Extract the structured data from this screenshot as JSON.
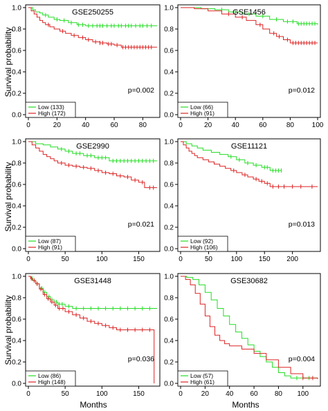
{
  "figure": {
    "y_axis_title": "Survival probability",
    "x_axis_title": "Months"
  },
  "chart_data": [
    {
      "type": "line",
      "subtype": "kaplan-meier",
      "title": "GSE250255",
      "xlim": [
        0,
        90
      ],
      "ylim": [
        0,
        1
      ],
      "x_ticks": [
        0,
        20,
        40,
        60,
        80
      ],
      "y_ticks": [
        0.0,
        0.2,
        0.4,
        0.6,
        0.8,
        1.0
      ],
      "p_value": "p=0.002",
      "legend_placement": "bottom-left",
      "series": [
        {
          "name": "Low (133)",
          "color": "#22dd22",
          "x": [
            0,
            3,
            5,
            8,
            10,
            14,
            18,
            22,
            28,
            34,
            40,
            90
          ],
          "y": [
            1.0,
            0.98,
            0.96,
            0.95,
            0.93,
            0.91,
            0.89,
            0.88,
            0.86,
            0.84,
            0.83,
            0.83
          ],
          "censor_x": [
            12,
            20,
            25,
            30,
            35,
            38,
            42,
            45,
            48,
            50,
            52,
            55,
            58,
            60,
            63,
            65,
            68,
            70,
            72,
            75,
            78,
            80,
            83,
            86
          ]
        },
        {
          "name": "High (172)",
          "color": "#dd2222",
          "x": [
            0,
            2,
            4,
            6,
            8,
            10,
            12,
            15,
            18,
            22,
            26,
            30,
            35,
            40,
            45,
            50,
            55,
            60,
            65,
            90
          ],
          "y": [
            1.0,
            0.97,
            0.94,
            0.91,
            0.88,
            0.86,
            0.84,
            0.82,
            0.8,
            0.78,
            0.76,
            0.74,
            0.72,
            0.7,
            0.68,
            0.67,
            0.66,
            0.65,
            0.63,
            0.63
          ],
          "censor_x": [
            14,
            24,
            32,
            38,
            42,
            47,
            50,
            52,
            56,
            58,
            62,
            66,
            68,
            70,
            72,
            74,
            76,
            78,
            80,
            82,
            84,
            86
          ]
        }
      ]
    },
    {
      "type": "line",
      "subtype": "kaplan-meier",
      "title": "GSE1456",
      "xlim": [
        0,
        100
      ],
      "ylim": [
        0,
        1
      ],
      "x_ticks": [
        0,
        20,
        40,
        60,
        80,
        100
      ],
      "y_ticks": [
        0.0,
        0.2,
        0.4,
        0.6,
        0.8,
        1.0
      ],
      "p_value": "p=0.012",
      "legend_placement": "bottom-left",
      "series": [
        {
          "name": "Low (66)",
          "color": "#22dd22",
          "x": [
            0,
            15,
            25,
            35,
            45,
            55,
            65,
            75,
            85,
            100
          ],
          "y": [
            1.0,
            0.99,
            0.98,
            0.96,
            0.94,
            0.92,
            0.89,
            0.87,
            0.85,
            0.84
          ],
          "censor_x": [
            30,
            40,
            50,
            60,
            70,
            78,
            82,
            86,
            88,
            90,
            92,
            94,
            96,
            98
          ]
        },
        {
          "name": "High (91)",
          "color": "#dd2222",
          "x": [
            0,
            10,
            20,
            30,
            40,
            48,
            55,
            60,
            65,
            70,
            75,
            80,
            100
          ],
          "y": [
            1.0,
            0.99,
            0.97,
            0.94,
            0.91,
            0.88,
            0.84,
            0.8,
            0.76,
            0.73,
            0.7,
            0.67,
            0.67
          ],
          "censor_x": [
            35,
            45,
            58,
            68,
            72,
            78,
            82,
            84,
            86,
            88,
            90,
            92,
            94,
            96,
            98
          ]
        }
      ]
    },
    {
      "type": "line",
      "subtype": "kaplan-meier",
      "title": "GSE2990",
      "xlim": [
        0,
        175
      ],
      "ylim": [
        0,
        1
      ],
      "x_ticks": [
        0,
        50,
        100,
        150
      ],
      "y_ticks": [
        0.0,
        0.2,
        0.4,
        0.6,
        0.8,
        1.0
      ],
      "p_value": "p=0.021",
      "legend_placement": "bottom-left",
      "series": [
        {
          "name": "Low (87)",
          "color": "#22dd22",
          "x": [
            0,
            10,
            20,
            30,
            40,
            50,
            60,
            75,
            90,
            110,
            175
          ],
          "y": [
            1.0,
            0.98,
            0.97,
            0.95,
            0.93,
            0.91,
            0.89,
            0.87,
            0.85,
            0.82,
            0.82
          ],
          "censor_x": [
            45,
            55,
            65,
            70,
            80,
            85,
            95,
            100,
            105,
            115,
            120,
            125,
            130,
            135,
            140,
            145,
            150,
            155,
            160,
            165,
            170
          ]
        },
        {
          "name": "High (91)",
          "color": "#dd2222",
          "x": [
            0,
            5,
            10,
            15,
            20,
            25,
            30,
            35,
            40,
            50,
            60,
            70,
            80,
            90,
            100,
            110,
            120,
            130,
            140,
            150,
            158,
            175
          ],
          "y": [
            1.0,
            0.97,
            0.94,
            0.91,
            0.88,
            0.86,
            0.84,
            0.82,
            0.8,
            0.78,
            0.77,
            0.76,
            0.75,
            0.73,
            0.71,
            0.7,
            0.68,
            0.67,
            0.64,
            0.62,
            0.57,
            0.57
          ],
          "censor_x": [
            45,
            55,
            65,
            75,
            85,
            95,
            105,
            115,
            125,
            135,
            145,
            155,
            165,
            170
          ]
        }
      ]
    },
    {
      "type": "line",
      "subtype": "kaplan-meier",
      "title": "GSE11121",
      "xlim": [
        0,
        245
      ],
      "ylim": [
        0,
        1
      ],
      "x_ticks": [
        0,
        50,
        100,
        150,
        200
      ],
      "y_ticks": [
        0.0,
        0.2,
        0.4,
        0.6,
        0.8,
        1.0
      ],
      "p_value": "p=0.013",
      "legend_placement": "bottom-left",
      "series": [
        {
          "name": "Low (92)",
          "color": "#22dd22",
          "x": [
            0,
            10,
            20,
            30,
            40,
            55,
            70,
            85,
            100,
            115,
            130,
            145,
            160,
            180
          ],
          "y": [
            1.0,
            0.98,
            0.96,
            0.94,
            0.92,
            0.9,
            0.88,
            0.86,
            0.83,
            0.8,
            0.78,
            0.76,
            0.73,
            0.73
          ],
          "censor_x": [
            90,
            105,
            120,
            135,
            150,
            155,
            165,
            170,
            175,
            180
          ]
        },
        {
          "name": "High (106)",
          "color": "#dd2222",
          "x": [
            0,
            5,
            10,
            15,
            20,
            25,
            30,
            40,
            50,
            60,
            70,
            80,
            90,
            100,
            110,
            120,
            130,
            140,
            150,
            160,
            245
          ],
          "y": [
            1.0,
            0.97,
            0.94,
            0.91,
            0.89,
            0.87,
            0.85,
            0.83,
            0.81,
            0.79,
            0.77,
            0.75,
            0.73,
            0.71,
            0.69,
            0.67,
            0.65,
            0.63,
            0.61,
            0.58,
            0.58
          ],
          "censor_x": [
            95,
            115,
            135,
            145,
            155,
            165,
            175,
            185,
            200,
            215,
            235
          ]
        }
      ]
    },
    {
      "type": "line",
      "subtype": "kaplan-meier",
      "title": "GSE31448",
      "xlim": [
        0,
        175
      ],
      "ylim": [
        0,
        1
      ],
      "x_ticks": [
        0,
        50,
        100,
        150
      ],
      "y_ticks": [
        0.0,
        0.2,
        0.4,
        0.6,
        0.8,
        1.0
      ],
      "p_value": "p=0.036",
      "legend_placement": "bottom-left",
      "series": [
        {
          "name": "Low (86)",
          "color": "#22dd22",
          "x": [
            0,
            3,
            6,
            10,
            15,
            20,
            25,
            30,
            35,
            40,
            50,
            60,
            175
          ],
          "y": [
            1.0,
            0.98,
            0.96,
            0.93,
            0.89,
            0.85,
            0.81,
            0.78,
            0.76,
            0.74,
            0.72,
            0.7,
            0.7
          ],
          "censor_x": [
            5,
            8,
            12,
            18,
            22,
            28,
            32,
            38,
            42,
            46,
            55,
            65,
            75,
            85,
            95,
            105,
            115,
            125,
            135,
            145,
            155,
            165
          ]
        },
        {
          "name": "High (148)",
          "color": "#dd2222",
          "x": [
            0,
            3,
            6,
            10,
            15,
            20,
            25,
            30,
            35,
            40,
            50,
            60,
            70,
            80,
            90,
            100,
            110,
            120,
            130,
            140,
            150,
            160,
            170,
            171
          ],
          "y": [
            1.0,
            0.98,
            0.96,
            0.93,
            0.88,
            0.83,
            0.79,
            0.76,
            0.73,
            0.7,
            0.67,
            0.64,
            0.61,
            0.58,
            0.56,
            0.54,
            0.52,
            0.5,
            0.5,
            0.5,
            0.5,
            0.5,
            0.5,
            0.0
          ],
          "censor_x": [
            4,
            8,
            12,
            17,
            22,
            27,
            32,
            37,
            42,
            47,
            55,
            65,
            75,
            85,
            95,
            105,
            115,
            125,
            135,
            145,
            155,
            165
          ]
        }
      ]
    },
    {
      "type": "line",
      "subtype": "kaplan-meier",
      "title": "GSE30682",
      "xlim": [
        0,
        112
      ],
      "ylim": [
        0,
        1
      ],
      "x_ticks": [
        0,
        20,
        40,
        60,
        80,
        100
      ],
      "y_ticks": [
        0.0,
        0.2,
        0.4,
        0.6,
        0.8,
        1.0
      ],
      "p_value": "p=0.004",
      "legend_placement": "bottom-left",
      "series": [
        {
          "name": "Low (57)",
          "color": "#22dd22",
          "x": [
            0,
            5,
            10,
            15,
            20,
            25,
            30,
            35,
            40,
            45,
            50,
            55,
            60,
            65,
            70,
            75,
            80,
            85,
            90,
            112
          ],
          "y": [
            1.0,
            0.99,
            0.97,
            0.92,
            0.85,
            0.78,
            0.7,
            0.63,
            0.55,
            0.48,
            0.42,
            0.36,
            0.3,
            0.25,
            0.2,
            0.15,
            0.1,
            0.07,
            0.05,
            0.05
          ],
          "censor_x": [
            95,
            105
          ]
        },
        {
          "name": "High (61)",
          "color": "#dd2222",
          "x": [
            0,
            4,
            8,
            12,
            16,
            20,
            24,
            28,
            32,
            36,
            40,
            50,
            60,
            70,
            80,
            90,
            100,
            112
          ],
          "y": [
            1.0,
            0.97,
            0.92,
            0.84,
            0.74,
            0.63,
            0.53,
            0.45,
            0.4,
            0.37,
            0.35,
            0.32,
            0.28,
            0.22,
            0.15,
            0.09,
            0.05,
            0.04
          ],
          "censor_x": [
            100,
            108
          ]
        }
      ]
    }
  ]
}
